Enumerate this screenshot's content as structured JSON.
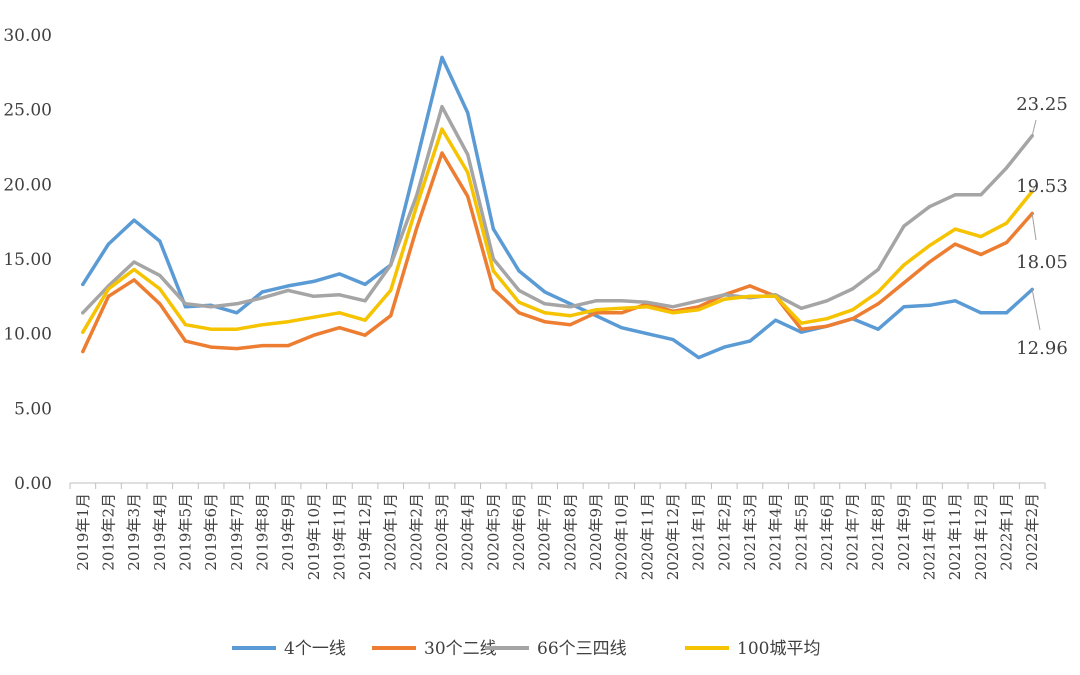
{
  "chart_data": {
    "type": "line",
    "title": "",
    "xlabel": "",
    "ylabel": "",
    "ylim": [
      0,
      30
    ],
    "yticks": [
      "0.00",
      "5.00",
      "10.00",
      "15.00",
      "20.00",
      "25.00",
      "30.00"
    ],
    "grid": false,
    "legend_position": "bottom",
    "categories": [
      "2019年1月",
      "2019年2月",
      "2019年3月",
      "2019年4月",
      "2019年5月",
      "2019年6月",
      "2019年7月",
      "2019年8月",
      "2019年9月",
      "2019年10月",
      "2019年11月",
      "2019年12月",
      "2020年1月",
      "2020年2月",
      "2020年3月",
      "2020年4月",
      "2020年5月",
      "2020年6月",
      "2020年7月",
      "2020年8月",
      "2020年9月",
      "2020年10月",
      "2020年11月",
      "2020年12月",
      "2021年1月",
      "2021年2月",
      "2021年3月",
      "2021年4月",
      "2021年5月",
      "2021年6月",
      "2021年7月",
      "2021年8月",
      "2021年9月",
      "2021年10月",
      "2021年11月",
      "2021年12月",
      "2022年1月",
      "2022年2月"
    ],
    "series": [
      {
        "name": "4个一线",
        "color": "#5b9bd5",
        "values": [
          13.3,
          16.0,
          17.6,
          16.2,
          11.8,
          11.9,
          11.4,
          12.8,
          13.2,
          13.5,
          14.0,
          13.3,
          14.6,
          21.5,
          28.5,
          24.8,
          17.0,
          14.2,
          12.8,
          12.0,
          11.2,
          10.4,
          10.0,
          9.6,
          8.4,
          9.1,
          9.5,
          10.9,
          10.1,
          10.5,
          11.0,
          10.3,
          11.8,
          11.9,
          12.2,
          11.4,
          11.4,
          12.96
        ]
      },
      {
        "name": "30个二线",
        "color": "#ed7d31",
        "values": [
          8.8,
          12.5,
          13.6,
          12.0,
          9.5,
          9.1,
          9.0,
          9.2,
          9.2,
          9.9,
          10.4,
          9.9,
          11.2,
          17.0,
          22.1,
          19.2,
          13.0,
          11.4,
          10.8,
          10.6,
          11.4,
          11.4,
          12.0,
          11.5,
          11.8,
          12.6,
          13.2,
          12.5,
          10.3,
          10.5,
          11.0,
          12.0,
          13.4,
          14.8,
          16.0,
          15.3,
          16.1,
          18.05
        ]
      },
      {
        "name": "66个三四线",
        "color": "#a5a5a5",
        "values": [
          11.4,
          13.2,
          14.8,
          13.9,
          12.0,
          11.8,
          12.0,
          12.4,
          12.9,
          12.5,
          12.6,
          12.2,
          14.6,
          19.2,
          25.2,
          22.0,
          15.0,
          12.9,
          12.0,
          11.8,
          12.2,
          12.2,
          12.1,
          11.8,
          12.2,
          12.6,
          12.4,
          12.6,
          11.7,
          12.2,
          13.0,
          14.3,
          17.2,
          18.5,
          19.3,
          19.3,
          21.1,
          23.25
        ]
      },
      {
        "name": "100城平均",
        "color": "#f5c300",
        "values": [
          10.1,
          13.0,
          14.3,
          13.0,
          10.6,
          10.3,
          10.3,
          10.6,
          10.8,
          11.1,
          11.4,
          10.9,
          12.9,
          18.5,
          23.7,
          20.8,
          14.2,
          12.1,
          11.4,
          11.2,
          11.6,
          11.7,
          11.8,
          11.4,
          11.6,
          12.3,
          12.5,
          12.5,
          10.7,
          11.0,
          11.6,
          12.8,
          14.6,
          15.9,
          17.0,
          16.5,
          17.4,
          19.53
        ]
      }
    ],
    "end_labels": [
      {
        "series": 2,
        "text": "23.25"
      },
      {
        "series": 3,
        "text": "19.53"
      },
      {
        "series": 1,
        "text": "18.05"
      },
      {
        "series": 0,
        "text": "12.96"
      }
    ]
  }
}
